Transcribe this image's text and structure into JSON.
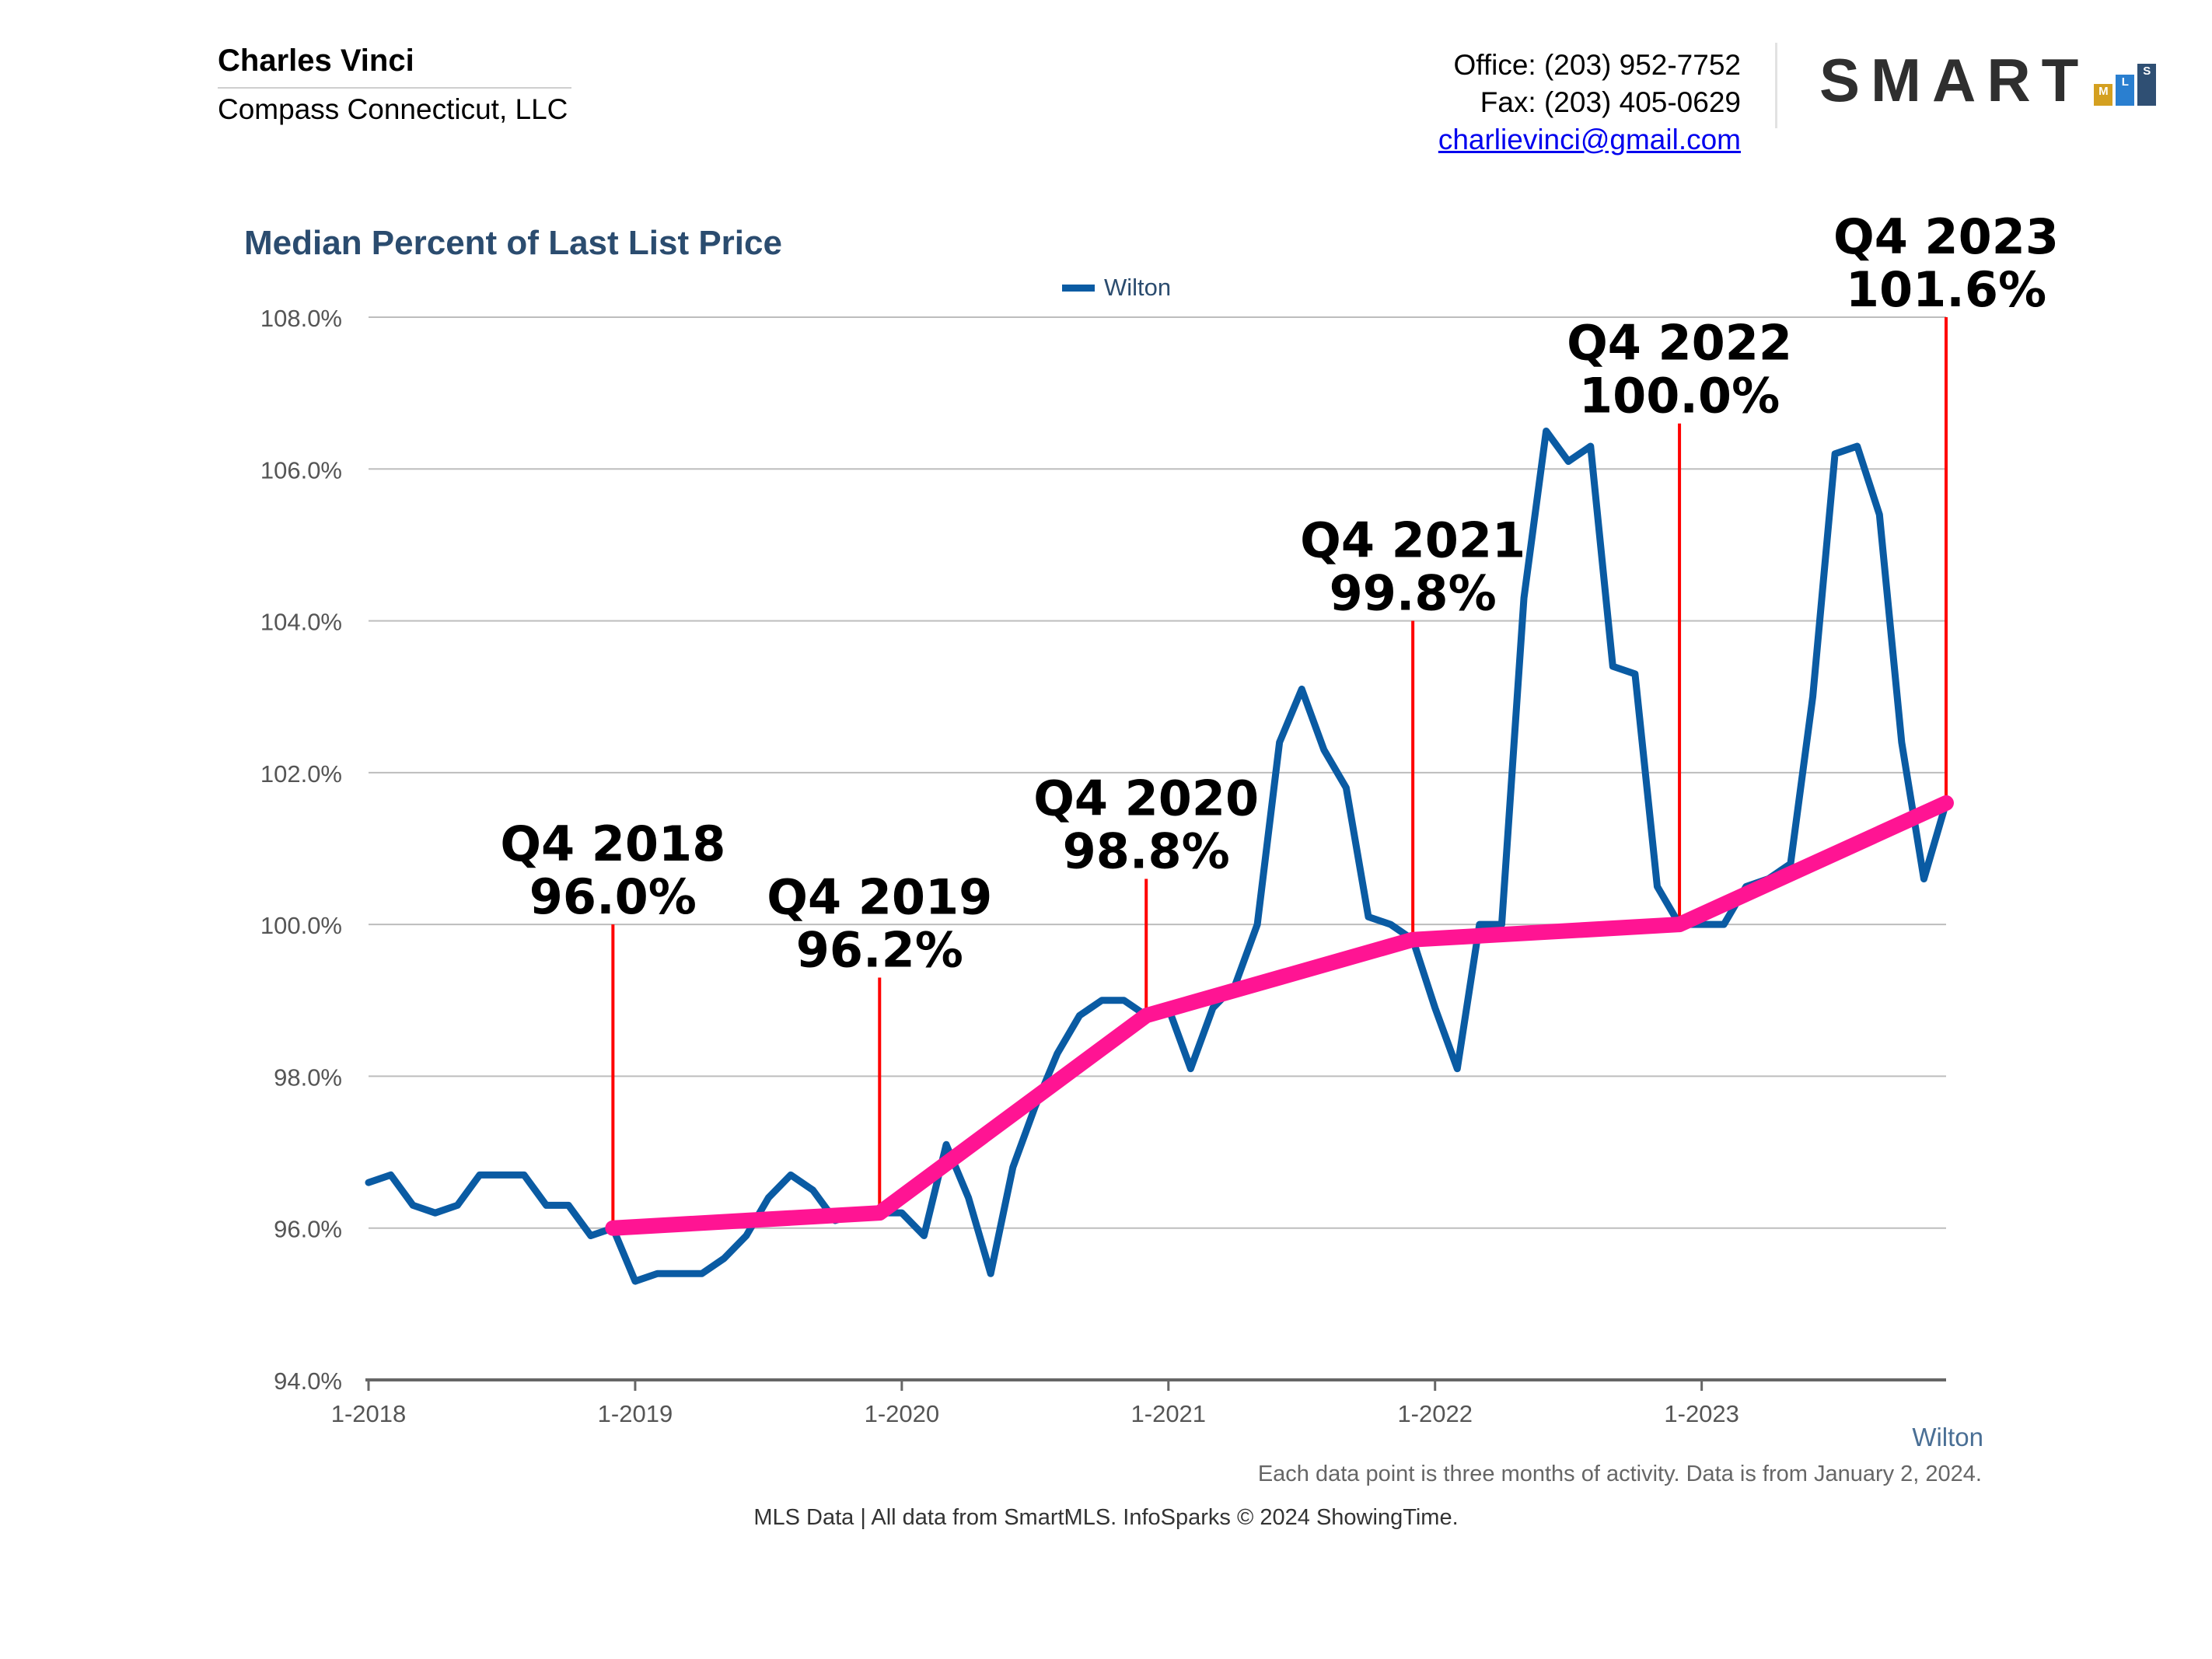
{
  "header": {
    "agent_name": "Charles Vinci",
    "company": "Compass Connecticut, LLC",
    "office": "Office: (203) 952-7752",
    "fax": "Fax: (203) 405-0629",
    "email": "charlievinci@gmail.com"
  },
  "logo": {
    "word": "SMART",
    "letters": [
      "M",
      "L",
      "S"
    ],
    "colors": [
      "#d4a020",
      "#2a7fd0",
      "#2f4f73"
    ]
  },
  "colors": {
    "series": "#0a5ba3",
    "trend": "#ff1493",
    "annotation": "#ff0000",
    "grid": "#bdbdbd",
    "title": "#2b4c6f"
  },
  "footer": {
    "series_tag": "Wilton",
    "note": "Each data point is three months of activity. Data is from January 2, 2024.",
    "source": "MLS Data | All data from SmartMLS. InfoSparks © 2024 ShowingTime."
  },
  "chart_data": {
    "type": "line",
    "title": "Median Percent of Last List Price",
    "legend": [
      "Wilton"
    ],
    "ylim": [
      94,
      108
    ],
    "yticks": [
      "108.0%",
      "106.0%",
      "104.0%",
      "102.0%",
      "100.0%",
      "98.0%",
      "96.0%",
      "94.0%"
    ],
    "xlim": [
      0,
      71
    ],
    "xticks": [
      {
        "index": 0,
        "label": "1-2018"
      },
      {
        "index": 12,
        "label": "1-2019"
      },
      {
        "index": 24,
        "label": "1-2020"
      },
      {
        "index": 36,
        "label": "1-2021"
      },
      {
        "index": 48,
        "label": "1-2022"
      },
      {
        "index": 60,
        "label": "1-2023"
      }
    ],
    "series": [
      {
        "name": "Wilton",
        "values": [
          96.6,
          96.7,
          96.3,
          96.2,
          96.3,
          96.7,
          96.7,
          96.7,
          96.3,
          96.3,
          95.9,
          96.0,
          95.3,
          95.4,
          95.4,
          95.4,
          95.6,
          95.9,
          96.4,
          96.7,
          96.5,
          96.1,
          96.2,
          96.2,
          96.2,
          95.9,
          97.1,
          96.4,
          95.4,
          96.8,
          97.6,
          98.3,
          98.8,
          99.0,
          99.0,
          98.8,
          98.9,
          98.1,
          98.9,
          99.2,
          100.0,
          102.4,
          103.1,
          102.3,
          101.8,
          100.1,
          100.0,
          99.8,
          98.9,
          98.1,
          100.0,
          100.0,
          104.3,
          106.5,
          106.1,
          106.3,
          103.4,
          103.3,
          100.5,
          100.0,
          100.0,
          100.0,
          100.5,
          100.6,
          100.8,
          103.0,
          106.2,
          106.3,
          105.4,
          102.4,
          100.6,
          101.6
        ]
      },
      {
        "name": "Q4 trend",
        "x": [
          11,
          23,
          35,
          47,
          59,
          71
        ],
        "values": [
          96.0,
          96.2,
          98.8,
          99.8,
          100.0,
          101.6
        ]
      }
    ],
    "annotations": [
      {
        "index": 11,
        "value": 96.0,
        "top": 100.0,
        "label": "Q4 2018",
        "value_label": "96.0%"
      },
      {
        "index": 23,
        "value": 96.2,
        "top": 99.3,
        "label": "Q4 2019",
        "value_label": "96.2%"
      },
      {
        "index": 35,
        "value": 98.8,
        "top": 100.6,
        "label": "Q4 2020",
        "value_label": "98.8%"
      },
      {
        "index": 47,
        "value": 99.8,
        "top": 104.0,
        "label": "Q4 2021",
        "value_label": "99.8%"
      },
      {
        "index": 59,
        "value": 100.0,
        "top": 106.6,
        "label": "Q4 2022",
        "value_label": "100.0%"
      },
      {
        "index": 71,
        "value": 101.6,
        "top": 108.0,
        "label": "Q4 2023",
        "value_label": "101.6%"
      }
    ]
  }
}
